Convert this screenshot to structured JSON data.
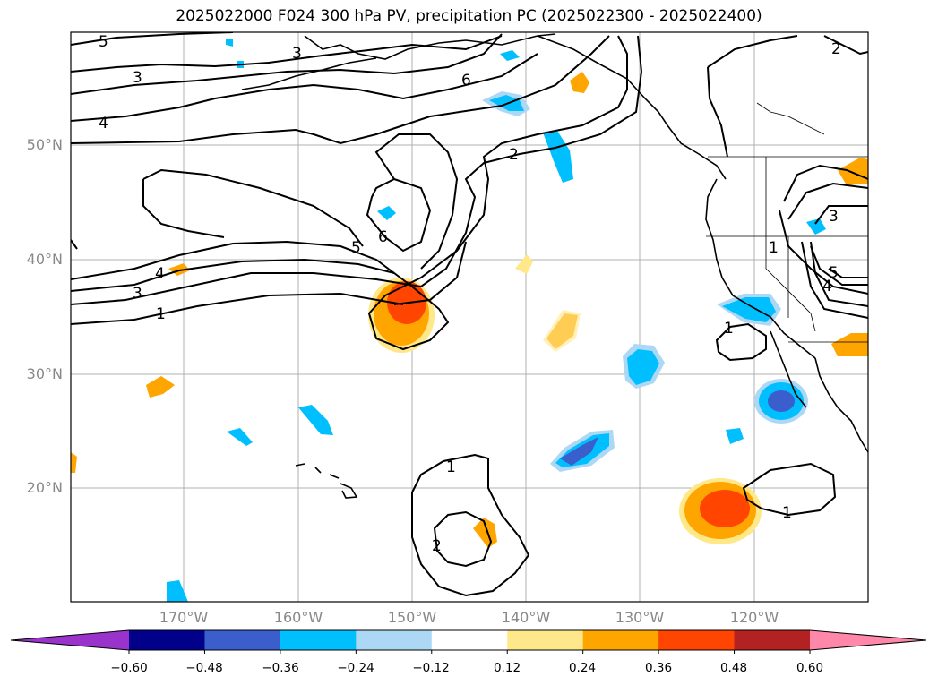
{
  "title": "2025022000 F024 300 hPa PV, precipitation PC (2025022300 - 2025022400)",
  "lat_labels": [
    "50°N",
    "40°N",
    "30°N",
    "20°N"
  ],
  "lon_labels": [
    "170°W",
    "160°W",
    "150°W",
    "140°W",
    "130°W",
    "120°W"
  ],
  "contour_labels": [
    "5",
    "3",
    "4",
    "3",
    "6",
    "2",
    "6",
    "5",
    "4",
    "3",
    "1",
    "1",
    "3",
    "5",
    "4",
    "1",
    "1",
    "2",
    "1",
    "2"
  ],
  "colorbar": {
    "ticks": [
      "−0.60",
      "−0.48",
      "−0.36",
      "−0.24",
      "−0.12",
      "0.12",
      "0.24",
      "0.36",
      "0.48",
      "0.60"
    ],
    "colors": [
      "#9933cc",
      "#00008b",
      "#3a5fcd",
      "#00bfff",
      "#add8f5",
      "#ffffff",
      "#ffe88a",
      "#ffa500",
      "#ff4500",
      "#b22222",
      "#ff88aa"
    ]
  }
}
